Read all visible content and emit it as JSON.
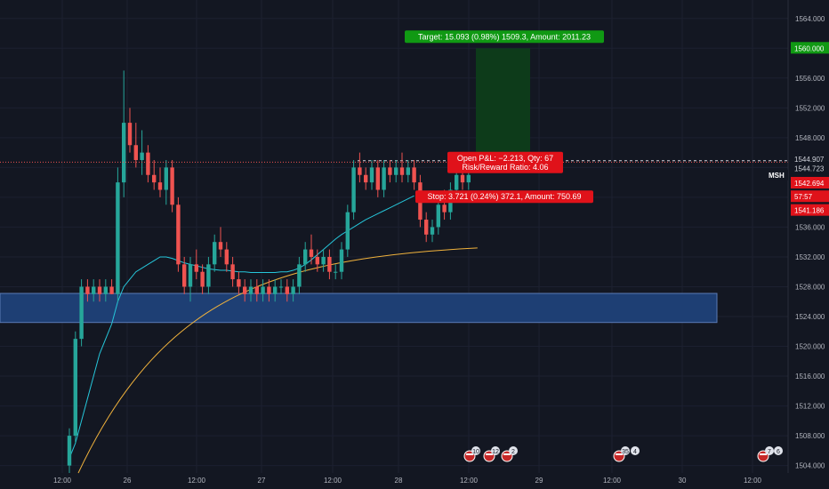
{
  "chart_data": {
    "type": "candlestick",
    "symbol": "MSH",
    "y_axis": {
      "ylim": [
        1503,
        1566
      ],
      "ticks": [
        1504,
        1508,
        1512,
        1516,
        1520,
        1524,
        1528,
        1532,
        1536,
        1540,
        1544,
        1548,
        1552,
        1556,
        1560,
        1564
      ],
      "tick_labels": [
        "1504.000",
        "1508.000",
        "1512.000",
        "1516.000",
        "1520.000",
        "1524.000",
        "1528.000",
        "1532.000",
        "1536.000",
        "1540.000",
        "1544.000",
        "1548.000",
        "1552.000",
        "1556.000",
        "1560.000",
        "1564.000"
      ]
    },
    "x_axis": {
      "tick_labels": [
        "12:00",
        "26",
        "12:00",
        "27",
        "12:00",
        "28",
        "12:00",
        "29",
        "12:00",
        "30",
        "12:00"
      ]
    },
    "price_labels": {
      "target": "1560.000",
      "entry": "1544.907",
      "symbol": "MSH",
      "last": "1544.723",
      "mid_a": "1542.694",
      "countdown": "57:57",
      "stop": "1541.186"
    },
    "position": {
      "target_text": "Target: 15.093 (0.98%) 1509.3, Amount: 2011.23",
      "open_pnl_text": "Open P&L: −2.213, Qty: 67",
      "rr_text": "Risk/Reward Ratio: 4.06",
      "stop_text": "Stop: 3.721 (0.24%) 372.1, Amount: 750.69",
      "entry": 1544.907,
      "target": 1560.0,
      "stop": 1541.186
    },
    "zone": {
      "low": 1523.2,
      "high": 1527.1
    },
    "candles": [
      [
        1504,
        1509,
        1503,
        1508
      ],
      [
        1508,
        1522,
        1507,
        1521
      ],
      [
        1521,
        1529,
        1520,
        1528
      ],
      [
        1528,
        1529,
        1526,
        1527
      ],
      [
        1527,
        1529,
        1526,
        1528
      ],
      [
        1528,
        1529,
        1526,
        1527
      ],
      [
        1527,
        1529,
        1526,
        1528
      ],
      [
        1528,
        1529,
        1527,
        1527
      ],
      [
        1527,
        1544,
        1526,
        1542
      ],
      [
        1542,
        1557,
        1540,
        1550
      ],
      [
        1550,
        1552,
        1546,
        1547
      ],
      [
        1547,
        1550,
        1544,
        1545
      ],
      [
        1545,
        1549,
        1543,
        1546
      ],
      [
        1546,
        1547,
        1542,
        1543
      ],
      [
        1543,
        1545,
        1541,
        1542
      ],
      [
        1542,
        1544,
        1540,
        1541
      ],
      [
        1541,
        1545,
        1539,
        1544
      ],
      [
        1544,
        1545,
        1538,
        1539
      ],
      [
        1539,
        1540,
        1530,
        1531
      ],
      [
        1531,
        1532,
        1527,
        1528
      ],
      [
        1528,
        1532,
        1526,
        1531
      ],
      [
        1531,
        1533,
        1529,
        1530
      ],
      [
        1530,
        1531,
        1527,
        1528
      ],
      [
        1528,
        1532,
        1527,
        1531
      ],
      [
        1531,
        1535,
        1530,
        1534
      ],
      [
        1534,
        1536,
        1532,
        1533
      ],
      [
        1533,
        1534,
        1530,
        1531
      ],
      [
        1531,
        1532,
        1528,
        1529
      ],
      [
        1529,
        1530,
        1527,
        1528
      ],
      [
        1528,
        1529,
        1526,
        1527
      ],
      [
        1527,
        1529,
        1526,
        1528
      ],
      [
        1528,
        1529,
        1526,
        1527
      ],
      [
        1527,
        1529,
        1526,
        1528
      ],
      [
        1528,
        1529,
        1526,
        1527
      ],
      [
        1527,
        1529,
        1526,
        1528
      ],
      [
        1528,
        1529,
        1527,
        1528
      ],
      [
        1528,
        1529,
        1526,
        1527
      ],
      [
        1527,
        1529,
        1526,
        1528
      ],
      [
        1528,
        1532,
        1527,
        1531
      ],
      [
        1531,
        1534,
        1530,
        1533
      ],
      [
        1533,
        1535,
        1531,
        1532
      ],
      [
        1532,
        1533,
        1530,
        1531
      ],
      [
        1531,
        1533,
        1530,
        1532
      ],
      [
        1532,
        1533,
        1529,
        1530
      ],
      [
        1530,
        1531,
        1529,
        1530
      ],
      [
        1530,
        1534,
        1529,
        1533
      ],
      [
        1533,
        1539,
        1532,
        1538
      ],
      [
        1538,
        1545,
        1537,
        1544
      ],
      [
        1544,
        1546,
        1542,
        1543
      ],
      [
        1543,
        1544,
        1541,
        1542
      ],
      [
        1542,
        1545,
        1541,
        1544
      ],
      [
        1544,
        1545,
        1540,
        1541
      ],
      [
        1541,
        1545,
        1540,
        1544
      ],
      [
        1544,
        1545,
        1542,
        1543
      ],
      [
        1543,
        1545,
        1542,
        1544
      ],
      [
        1544,
        1546,
        1542,
        1543
      ],
      [
        1543,
        1545,
        1542,
        1544
      ],
      [
        1544,
        1545,
        1541,
        1542
      ],
      [
        1542,
        1543,
        1536,
        1537
      ],
      [
        1537,
        1538,
        1534,
        1535
      ],
      [
        1535,
        1537,
        1534,
        1536
      ],
      [
        1536,
        1540,
        1535,
        1539
      ],
      [
        1539,
        1541,
        1537,
        1538
      ],
      [
        1538,
        1542,
        1537,
        1541
      ],
      [
        1541,
        1544,
        1540,
        1543
      ],
      [
        1543,
        1544,
        1541,
        1542
      ],
      [
        1542,
        1544,
        1541,
        1543
      ]
    ],
    "ema_fast": [
      1505,
      1507,
      1510,
      1513,
      1516,
      1519,
      1521,
      1523,
      1526,
      1528,
      1529,
      1530,
      1530.5,
      1531,
      1531.5,
      1532,
      1532,
      1531.8,
      1531.5,
      1531.2,
      1531,
      1530.8,
      1530.6,
      1530.4,
      1530.3,
      1530.2,
      1530.2,
      1530.1,
      1530,
      1530,
      1529.9,
      1529.9,
      1529.9,
      1529.9,
      1529.9,
      1530,
      1530,
      1530.2,
      1530.5,
      1531,
      1531.6,
      1532.3,
      1533,
      1533.7,
      1534.4,
      1535,
      1535.5,
      1536,
      1536.5,
      1537,
      1537.4,
      1537.8,
      1538.2,
      1538.6,
      1539,
      1539.4,
      1539.8,
      1540.2
    ]
  },
  "colors": {
    "background": "#131722",
    "up": "#26a69a",
    "down": "#ef5350",
    "ema_fast": "#26c6da",
    "ema_slow": "#f0b23c",
    "zone": "#1e3f74",
    "target_zone": "#0d3b1a",
    "target_label": "#109913",
    "stop_label": "#e0121a"
  },
  "icons": [
    "us-flag-event-icon"
  ],
  "events": [
    {
      "count": "10"
    },
    {
      "count": "12"
    },
    {
      "count": "2"
    },
    {
      "count": "35"
    },
    {
      "count": "4"
    },
    {
      "count": "7"
    },
    {
      "count": "6"
    }
  ]
}
